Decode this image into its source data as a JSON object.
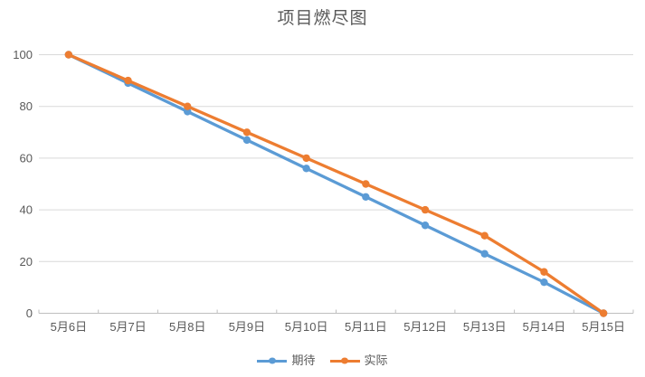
{
  "chart_data": {
    "type": "line",
    "title": "项目燃尽图",
    "categories": [
      "5月6日",
      "5月7日",
      "5月8日",
      "5月9日",
      "5月10日",
      "5月11日",
      "5月12日",
      "5月13日",
      "5月14日",
      "5月15日"
    ],
    "series": [
      {
        "name": "期待",
        "color": "#5B9BD5",
        "values": [
          100,
          89,
          78,
          67,
          56,
          45,
          34,
          23,
          12,
          0
        ]
      },
      {
        "name": "实际",
        "color": "#ED7D31",
        "values": [
          100,
          90,
          80,
          70,
          60,
          50,
          40,
          30,
          16,
          0
        ]
      }
    ],
    "xlabel": "",
    "ylabel": "",
    "ylim": [
      0,
      100
    ],
    "y_ticks": [
      0,
      20,
      40,
      60,
      80,
      100
    ],
    "grid": "horizontal",
    "legend_position": "bottom",
    "marker": "circle"
  },
  "colors": {
    "background": "#FFFFFF",
    "title_text": "#595959",
    "axis_text": "#595959",
    "gridline": "#D9D9D9",
    "axis_line": "#BFBFBF"
  }
}
